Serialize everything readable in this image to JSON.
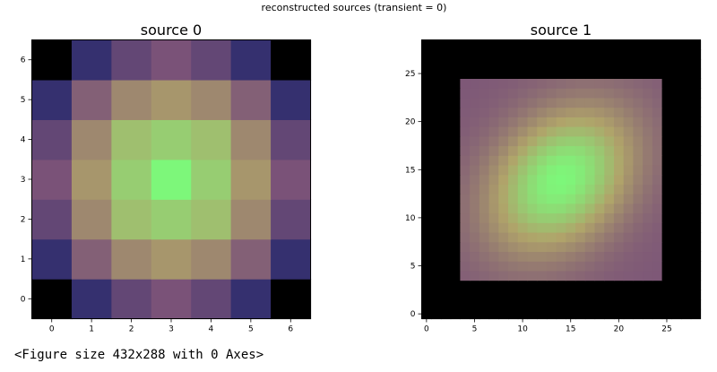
{
  "figure": {
    "suptitle": "reconstructed sources (transient = 0)",
    "caption": "<Figure size 432x288 with 0 Axes>"
  },
  "chart_data": [
    {
      "type": "heatmap",
      "title": "source 0",
      "xlabel": "",
      "ylabel": "",
      "grid": false,
      "origin": "lower",
      "xlim": [
        -0.5,
        6.5
      ],
      "ylim": [
        -0.5,
        6.5
      ],
      "xticks": [
        0,
        1,
        2,
        3,
        4,
        5,
        6
      ],
      "yticks": [
        0,
        1,
        2,
        3,
        4,
        5,
        6
      ],
      "shape": [
        7,
        7
      ],
      "description": "values peak at center (3,3) and fall off radially; corner cells are zero (black)",
      "values": [
        [
          0.0,
          0.1,
          0.3,
          0.4,
          0.3,
          0.1,
          0.0
        ],
        [
          0.1,
          0.45,
          0.6,
          0.65,
          0.6,
          0.45,
          0.1
        ],
        [
          0.3,
          0.6,
          0.8,
          0.85,
          0.8,
          0.6,
          0.3
        ],
        [
          0.4,
          0.65,
          0.85,
          1.0,
          0.85,
          0.65,
          0.4
        ],
        [
          0.3,
          0.6,
          0.8,
          0.85,
          0.8,
          0.6,
          0.3
        ],
        [
          0.1,
          0.45,
          0.6,
          0.65,
          0.6,
          0.45,
          0.1
        ],
        [
          0.0,
          0.1,
          0.3,
          0.4,
          0.3,
          0.1,
          0.0
        ]
      ]
    },
    {
      "type": "heatmap",
      "title": "source 1",
      "xlabel": "",
      "ylabel": "",
      "grid": false,
      "origin": "lower",
      "xlim": [
        -0.5,
        28.5
      ],
      "ylim": [
        -0.5,
        28.5
      ],
      "xticks": [
        0,
        5,
        10,
        15,
        20,
        25
      ],
      "yticks": [
        0,
        5,
        10,
        15,
        20,
        25
      ],
      "shape": [
        29,
        29
      ],
      "support": {
        "x": [
          4,
          24
        ],
        "y": [
          4,
          24
        ]
      },
      "peak": {
        "x": 14,
        "y": 14
      },
      "description": "zero (black) outside square support x,y in [4,24]; inside a tilted elliptical bump centered near (14,14), elongated along the anti-diagonal"
    }
  ],
  "colors": {
    "zero": "#000000",
    "low": "#2a2a6e",
    "mid": "#7a5278",
    "high": "#b0a36a",
    "peak": "#7df77a"
  }
}
